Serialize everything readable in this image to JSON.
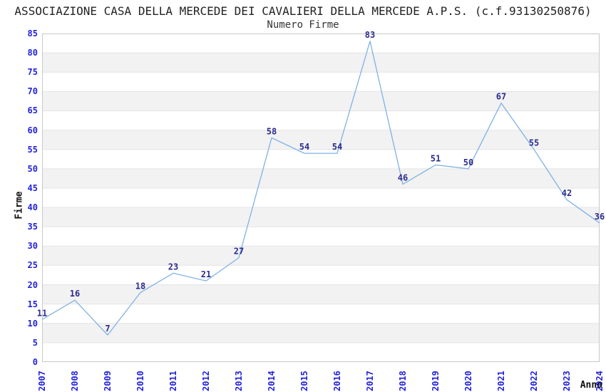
{
  "header": {
    "title": "ASSOCIAZIONE CASA DELLA MERCEDE DEI CAVALIERI DELLA MERCEDE A.P.S. (c.f.93130250876)",
    "subtitle": "Numero Firme"
  },
  "chart_data": {
    "type": "line",
    "title": "ASSOCIAZIONE CASA DELLA MERCEDE DEI CAVALIERI DELLA MERCEDE A.P.S. (c.f.93130250876)",
    "subtitle": "Numero Firme",
    "xlabel": "Anno",
    "ylabel": "Firme",
    "categories": [
      "2007",
      "2008",
      "2009",
      "2010",
      "2011",
      "2012",
      "2013",
      "2014",
      "2015",
      "2016",
      "2017",
      "2018",
      "2019",
      "2020",
      "2021",
      "2022",
      "2023",
      "2024"
    ],
    "values": [
      11,
      16,
      7,
      18,
      23,
      21,
      27,
      58,
      54,
      54,
      83,
      46,
      51,
      50,
      67,
      55,
      42,
      36
    ],
    "ylim": [
      0,
      85
    ],
    "ytick_step": 5,
    "legend": "none",
    "grid": "horizontal-bands",
    "point_labels": true,
    "x_tick_rotation_deg": 90,
    "colors": {
      "line": "#7fb2e5",
      "value_label": "#2b2b8f",
      "tick_label": "#2222dd",
      "band": "#f2f2f2",
      "gridline": "#e4e4e4",
      "border": "#c9c9c9"
    }
  }
}
